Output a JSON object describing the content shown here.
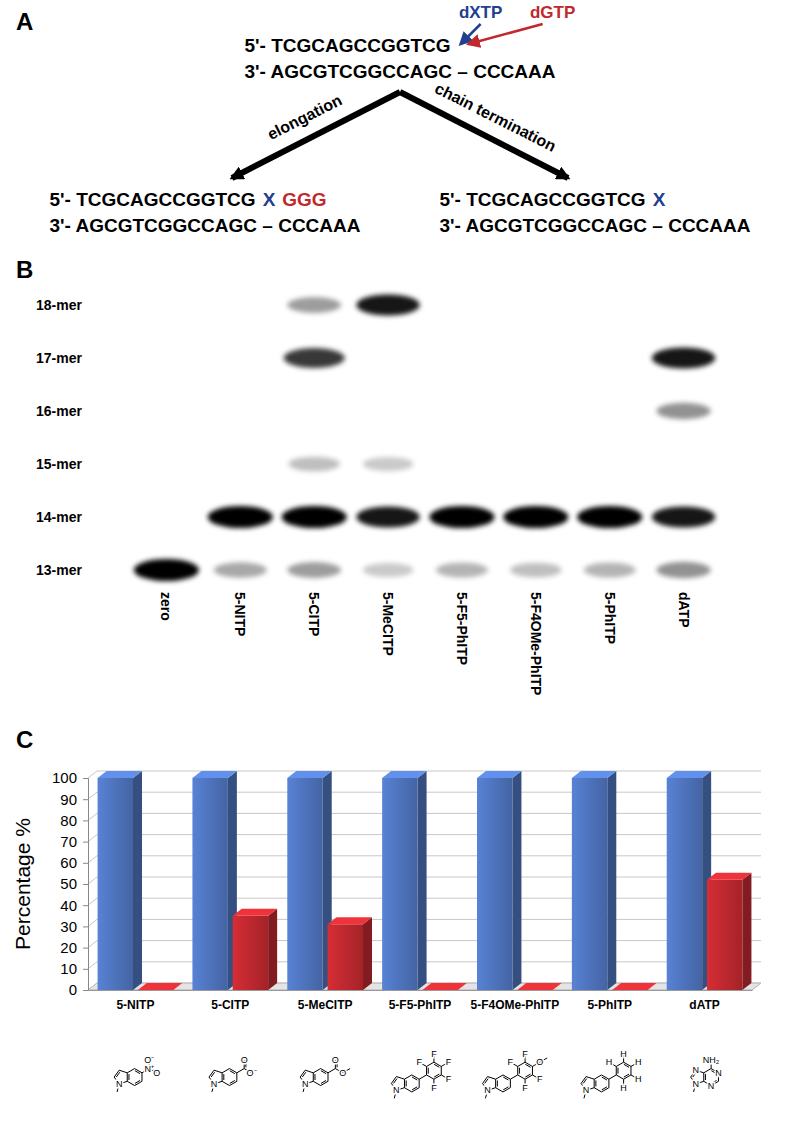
{
  "diagram": {
    "label": "A",
    "primer": "5'- TCGCAGCCGGTCG",
    "template": "3'- AGCGTCGGCCAGC – CCCAAA",
    "nucleotides": [
      {
        "text": "dXTP",
        "color": "#22408f"
      },
      {
        "text": "dGTP",
        "color": "#c1272d"
      }
    ],
    "pathways": [
      {
        "text": "elongation",
        "product": [
          "5'- TCGCAGCCGGTCG",
          "X",
          "GGG"
        ],
        "colors": [
          "#000000",
          "#22408f",
          "#c1272d"
        ],
        "template": "3'- AGCGTCGGCCAGC – CCCAAA"
      },
      {
        "text": "chain termination",
        "product": [
          "5'- TCGCAGCCGGTCG",
          "X"
        ],
        "colors": [
          "#000000",
          "#22408f"
        ],
        "template": "3'- AGCGTCGGCCAGC – CCCAAA"
      }
    ]
  },
  "gel": {
    "label": "B",
    "mer_ticks": [
      {
        "value": 18,
        "label": "18-mer"
      },
      {
        "value": 17,
        "label": "17-mer"
      },
      {
        "value": 16,
        "label": "16-mer"
      },
      {
        "value": 15,
        "label": "15-mer"
      },
      {
        "value": 14,
        "label": "14-mer"
      },
      {
        "value": 13,
        "label": "13-mer"
      }
    ],
    "lanes": [
      {
        "label": "zero",
        "bands": [
          {
            "mer": 13,
            "intensity": 1
          }
        ]
      },
      {
        "label": "5-NITP",
        "bands": [
          {
            "mer": 14,
            "intensity": 1
          },
          {
            "mer": 13,
            "intensity": 0.25
          }
        ]
      },
      {
        "label": "5-CITP",
        "bands": [
          {
            "mer": 18,
            "intensity": 0.3
          },
          {
            "mer": 17,
            "intensity": 0.75
          },
          {
            "mer": 15,
            "intensity": 0.15
          },
          {
            "mer": 14,
            "intensity": 1
          },
          {
            "mer": 13,
            "intensity": 0.3
          }
        ]
      },
      {
        "label": "5-MeCITP",
        "bands": [
          {
            "mer": 18,
            "intensity": 0.9
          },
          {
            "mer": 15,
            "intensity": 0.1
          },
          {
            "mer": 14,
            "intensity": 0.9
          },
          {
            "mer": 13,
            "intensity": 0.1
          }
        ]
      },
      {
        "label": "5-F5-PhITP",
        "bands": [
          {
            "mer": 14,
            "intensity": 1
          },
          {
            "mer": 13,
            "intensity": 0.2
          }
        ]
      },
      {
        "label": "5-F4OMe-PhITP",
        "bands": [
          {
            "mer": 14,
            "intensity": 1
          },
          {
            "mer": 13,
            "intensity": 0.15
          }
        ]
      },
      {
        "label": "5-PhITP",
        "bands": [
          {
            "mer": 14,
            "intensity": 1
          },
          {
            "mer": 13,
            "intensity": 0.2
          }
        ]
      },
      {
        "label": "dATP",
        "bands": [
          {
            "mer": 17,
            "intensity": 0.9
          },
          {
            "mer": 16,
            "intensity": 0.35
          },
          {
            "mer": 14,
            "intensity": 0.9
          },
          {
            "mer": 13,
            "intensity": 0.35
          }
        ]
      }
    ]
  },
  "chart_data": {
    "type": "bar",
    "panel_label": "C",
    "y_label": "Percentage %",
    "categories": [
      "5-NITP",
      "5-CITP",
      "5-MeCITP",
      "5-F5-PhITP",
      "5-F4OMe-PhITP",
      "5-PhITP",
      "dATP"
    ],
    "series": [
      {
        "color": "#4a6db2",
        "values": [
          100,
          100,
          100,
          100,
          100,
          100,
          100
        ]
      },
      {
        "color": "#b3262c",
        "values": [
          0,
          35,
          31,
          0,
          0,
          0,
          52
        ]
      }
    ],
    "ylim": [
      0,
      100
    ],
    "yticks": [
      0,
      10,
      20,
      30,
      40,
      50,
      60,
      70,
      80,
      90,
      100
    ],
    "grid": true,
    "category_structures": [
      [
        "N",
        "N⁺",
        "O⁻",
        "O"
      ],
      [
        "N",
        "O",
        "O⁻"
      ],
      [
        "N",
        "O",
        "O"
      ],
      [
        "N",
        "F",
        "F",
        "F",
        "F",
        "F"
      ],
      [
        "N",
        "F",
        "F",
        "O",
        "F",
        "F"
      ],
      [
        "N",
        "H",
        "H",
        "H",
        "H",
        "H"
      ],
      [
        "NH₂",
        "N",
        "N",
        "N",
        "N"
      ]
    ]
  }
}
